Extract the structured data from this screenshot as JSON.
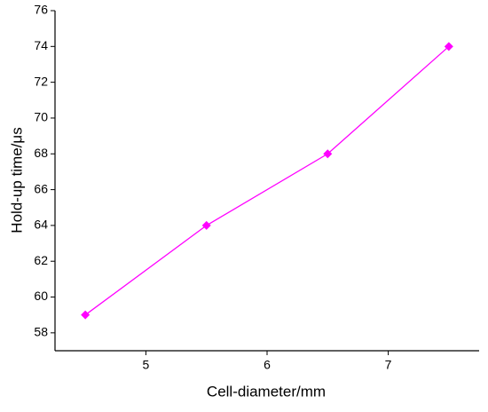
{
  "chart_data": {
    "type": "line",
    "x_label": "Cell-diameter/mm",
    "y_label": "Hold-up time/μs",
    "x": [
      4.5,
      5.5,
      6.5,
      7.5
    ],
    "series": [
      {
        "color": "#ff00ff",
        "values": [
          59,
          64,
          68,
          74
        ]
      }
    ],
    "xlim": [
      4.25,
      7.75
    ],
    "xticks": [
      5,
      6,
      7
    ],
    "ylim": [
      57,
      76
    ],
    "yticks": [
      58,
      60,
      62,
      64,
      66,
      68,
      70,
      72,
      74,
      76
    ]
  }
}
